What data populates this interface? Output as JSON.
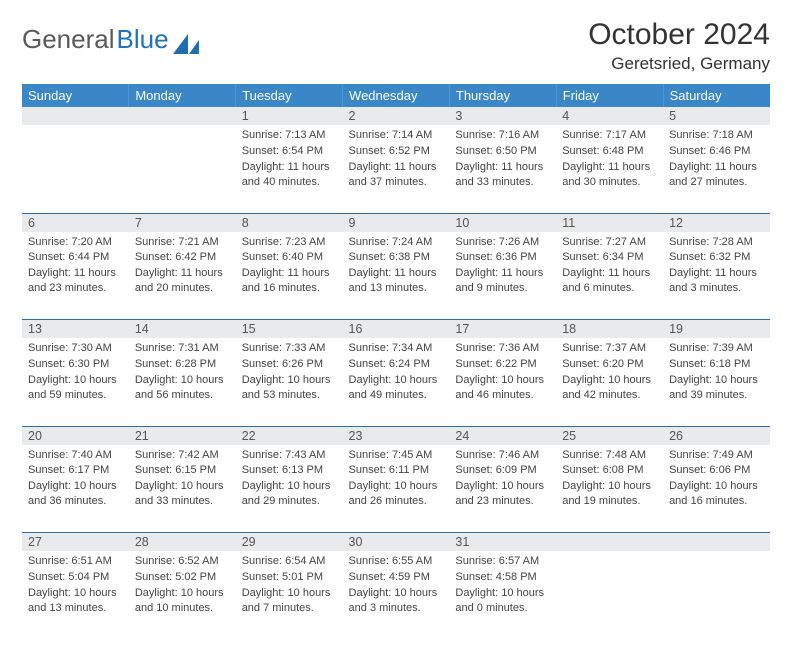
{
  "brand": {
    "part1": "General",
    "part2": "Blue"
  },
  "title": "October 2024",
  "location": "Geretsried, Germany",
  "colors": {
    "header_bg": "#3a87c8",
    "header_text": "#ffffff",
    "daynum_bg": "#e9eaec",
    "border": "#2b6fa8",
    "brand_blue": "#2073b8",
    "body_text": "#444444"
  },
  "day_headers": [
    "Sunday",
    "Monday",
    "Tuesday",
    "Wednesday",
    "Thursday",
    "Friday",
    "Saturday"
  ],
  "weeks": [
    {
      "nums": [
        "",
        "",
        "1",
        "2",
        "3",
        "4",
        "5"
      ],
      "cells": [
        {
          "sunrise": "",
          "sunset": "",
          "daylight": ""
        },
        {
          "sunrise": "",
          "sunset": "",
          "daylight": ""
        },
        {
          "sunrise": "Sunrise: 7:13 AM",
          "sunset": "Sunset: 6:54 PM",
          "daylight": "Daylight: 11 hours and 40 minutes."
        },
        {
          "sunrise": "Sunrise: 7:14 AM",
          "sunset": "Sunset: 6:52 PM",
          "daylight": "Daylight: 11 hours and 37 minutes."
        },
        {
          "sunrise": "Sunrise: 7:16 AM",
          "sunset": "Sunset: 6:50 PM",
          "daylight": "Daylight: 11 hours and 33 minutes."
        },
        {
          "sunrise": "Sunrise: 7:17 AM",
          "sunset": "Sunset: 6:48 PM",
          "daylight": "Daylight: 11 hours and 30 minutes."
        },
        {
          "sunrise": "Sunrise: 7:18 AM",
          "sunset": "Sunset: 6:46 PM",
          "daylight": "Daylight: 11 hours and 27 minutes."
        }
      ]
    },
    {
      "nums": [
        "6",
        "7",
        "8",
        "9",
        "10",
        "11",
        "12"
      ],
      "cells": [
        {
          "sunrise": "Sunrise: 7:20 AM",
          "sunset": "Sunset: 6:44 PM",
          "daylight": "Daylight: 11 hours and 23 minutes."
        },
        {
          "sunrise": "Sunrise: 7:21 AM",
          "sunset": "Sunset: 6:42 PM",
          "daylight": "Daylight: 11 hours and 20 minutes."
        },
        {
          "sunrise": "Sunrise: 7:23 AM",
          "sunset": "Sunset: 6:40 PM",
          "daylight": "Daylight: 11 hours and 16 minutes."
        },
        {
          "sunrise": "Sunrise: 7:24 AM",
          "sunset": "Sunset: 6:38 PM",
          "daylight": "Daylight: 11 hours and 13 minutes."
        },
        {
          "sunrise": "Sunrise: 7:26 AM",
          "sunset": "Sunset: 6:36 PM",
          "daylight": "Daylight: 11 hours and 9 minutes."
        },
        {
          "sunrise": "Sunrise: 7:27 AM",
          "sunset": "Sunset: 6:34 PM",
          "daylight": "Daylight: 11 hours and 6 minutes."
        },
        {
          "sunrise": "Sunrise: 7:28 AM",
          "sunset": "Sunset: 6:32 PM",
          "daylight": "Daylight: 11 hours and 3 minutes."
        }
      ]
    },
    {
      "nums": [
        "13",
        "14",
        "15",
        "16",
        "17",
        "18",
        "19"
      ],
      "cells": [
        {
          "sunrise": "Sunrise: 7:30 AM",
          "sunset": "Sunset: 6:30 PM",
          "daylight": "Daylight: 10 hours and 59 minutes."
        },
        {
          "sunrise": "Sunrise: 7:31 AM",
          "sunset": "Sunset: 6:28 PM",
          "daylight": "Daylight: 10 hours and 56 minutes."
        },
        {
          "sunrise": "Sunrise: 7:33 AM",
          "sunset": "Sunset: 6:26 PM",
          "daylight": "Daylight: 10 hours and 53 minutes."
        },
        {
          "sunrise": "Sunrise: 7:34 AM",
          "sunset": "Sunset: 6:24 PM",
          "daylight": "Daylight: 10 hours and 49 minutes."
        },
        {
          "sunrise": "Sunrise: 7:36 AM",
          "sunset": "Sunset: 6:22 PM",
          "daylight": "Daylight: 10 hours and 46 minutes."
        },
        {
          "sunrise": "Sunrise: 7:37 AM",
          "sunset": "Sunset: 6:20 PM",
          "daylight": "Daylight: 10 hours and 42 minutes."
        },
        {
          "sunrise": "Sunrise: 7:39 AM",
          "sunset": "Sunset: 6:18 PM",
          "daylight": "Daylight: 10 hours and 39 minutes."
        }
      ]
    },
    {
      "nums": [
        "20",
        "21",
        "22",
        "23",
        "24",
        "25",
        "26"
      ],
      "cells": [
        {
          "sunrise": "Sunrise: 7:40 AM",
          "sunset": "Sunset: 6:17 PM",
          "daylight": "Daylight: 10 hours and 36 minutes."
        },
        {
          "sunrise": "Sunrise: 7:42 AM",
          "sunset": "Sunset: 6:15 PM",
          "daylight": "Daylight: 10 hours and 33 minutes."
        },
        {
          "sunrise": "Sunrise: 7:43 AM",
          "sunset": "Sunset: 6:13 PM",
          "daylight": "Daylight: 10 hours and 29 minutes."
        },
        {
          "sunrise": "Sunrise: 7:45 AM",
          "sunset": "Sunset: 6:11 PM",
          "daylight": "Daylight: 10 hours and 26 minutes."
        },
        {
          "sunrise": "Sunrise: 7:46 AM",
          "sunset": "Sunset: 6:09 PM",
          "daylight": "Daylight: 10 hours and 23 minutes."
        },
        {
          "sunrise": "Sunrise: 7:48 AM",
          "sunset": "Sunset: 6:08 PM",
          "daylight": "Daylight: 10 hours and 19 minutes."
        },
        {
          "sunrise": "Sunrise: 7:49 AM",
          "sunset": "Sunset: 6:06 PM",
          "daylight": "Daylight: 10 hours and 16 minutes."
        }
      ]
    },
    {
      "nums": [
        "27",
        "28",
        "29",
        "30",
        "31",
        "",
        ""
      ],
      "cells": [
        {
          "sunrise": "Sunrise: 6:51 AM",
          "sunset": "Sunset: 5:04 PM",
          "daylight": "Daylight: 10 hours and 13 minutes."
        },
        {
          "sunrise": "Sunrise: 6:52 AM",
          "sunset": "Sunset: 5:02 PM",
          "daylight": "Daylight: 10 hours and 10 minutes."
        },
        {
          "sunrise": "Sunrise: 6:54 AM",
          "sunset": "Sunset: 5:01 PM",
          "daylight": "Daylight: 10 hours and 7 minutes."
        },
        {
          "sunrise": "Sunrise: 6:55 AM",
          "sunset": "Sunset: 4:59 PM",
          "daylight": "Daylight: 10 hours and 3 minutes."
        },
        {
          "sunrise": "Sunrise: 6:57 AM",
          "sunset": "Sunset: 4:58 PM",
          "daylight": "Daylight: 10 hours and 0 minutes."
        },
        {
          "sunrise": "",
          "sunset": "",
          "daylight": ""
        },
        {
          "sunrise": "",
          "sunset": "",
          "daylight": ""
        }
      ]
    }
  ]
}
